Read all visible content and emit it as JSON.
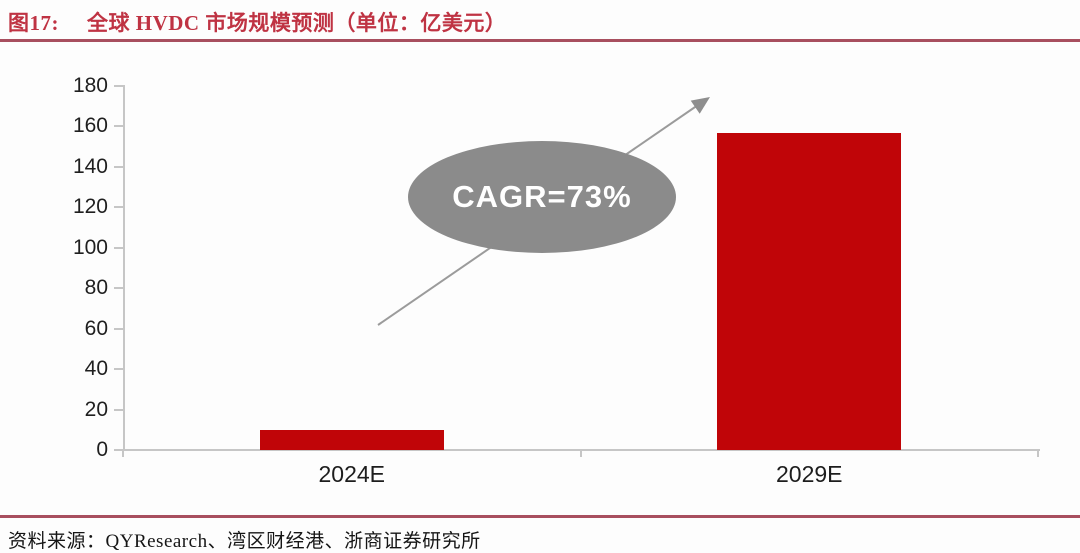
{
  "header": {
    "figure_label": "图17:",
    "title": "全球 HVDC 市场规模预测（单位：亿美元）"
  },
  "footer": {
    "source": "资料来源：QYResearch、湾区财经港、浙商证券研究所"
  },
  "colors": {
    "bar_red": "#c00508",
    "title_red": "#bf3343",
    "rule_red": "#a84f5f",
    "ellipse_gray": "#8b8b8b",
    "arrow_gray": "#9b9b9b",
    "axis_gray": "#c6c6c6"
  },
  "chart_data": {
    "type": "bar",
    "title": "全球 HVDC 市场规模预测",
    "unit": "亿美元",
    "categories": [
      "2024E",
      "2029E"
    ],
    "values": [
      10,
      157
    ],
    "ylim": [
      0,
      180
    ],
    "yticks": [
      0,
      20,
      40,
      60,
      80,
      100,
      120,
      140,
      160,
      180
    ],
    "xlabel": "",
    "ylabel": "",
    "grid": false,
    "legend": "none",
    "bar_color": "#c00508",
    "annotation": {
      "label": "CAGR=73%",
      "shape": "ellipse",
      "arrow": "up-right"
    }
  }
}
